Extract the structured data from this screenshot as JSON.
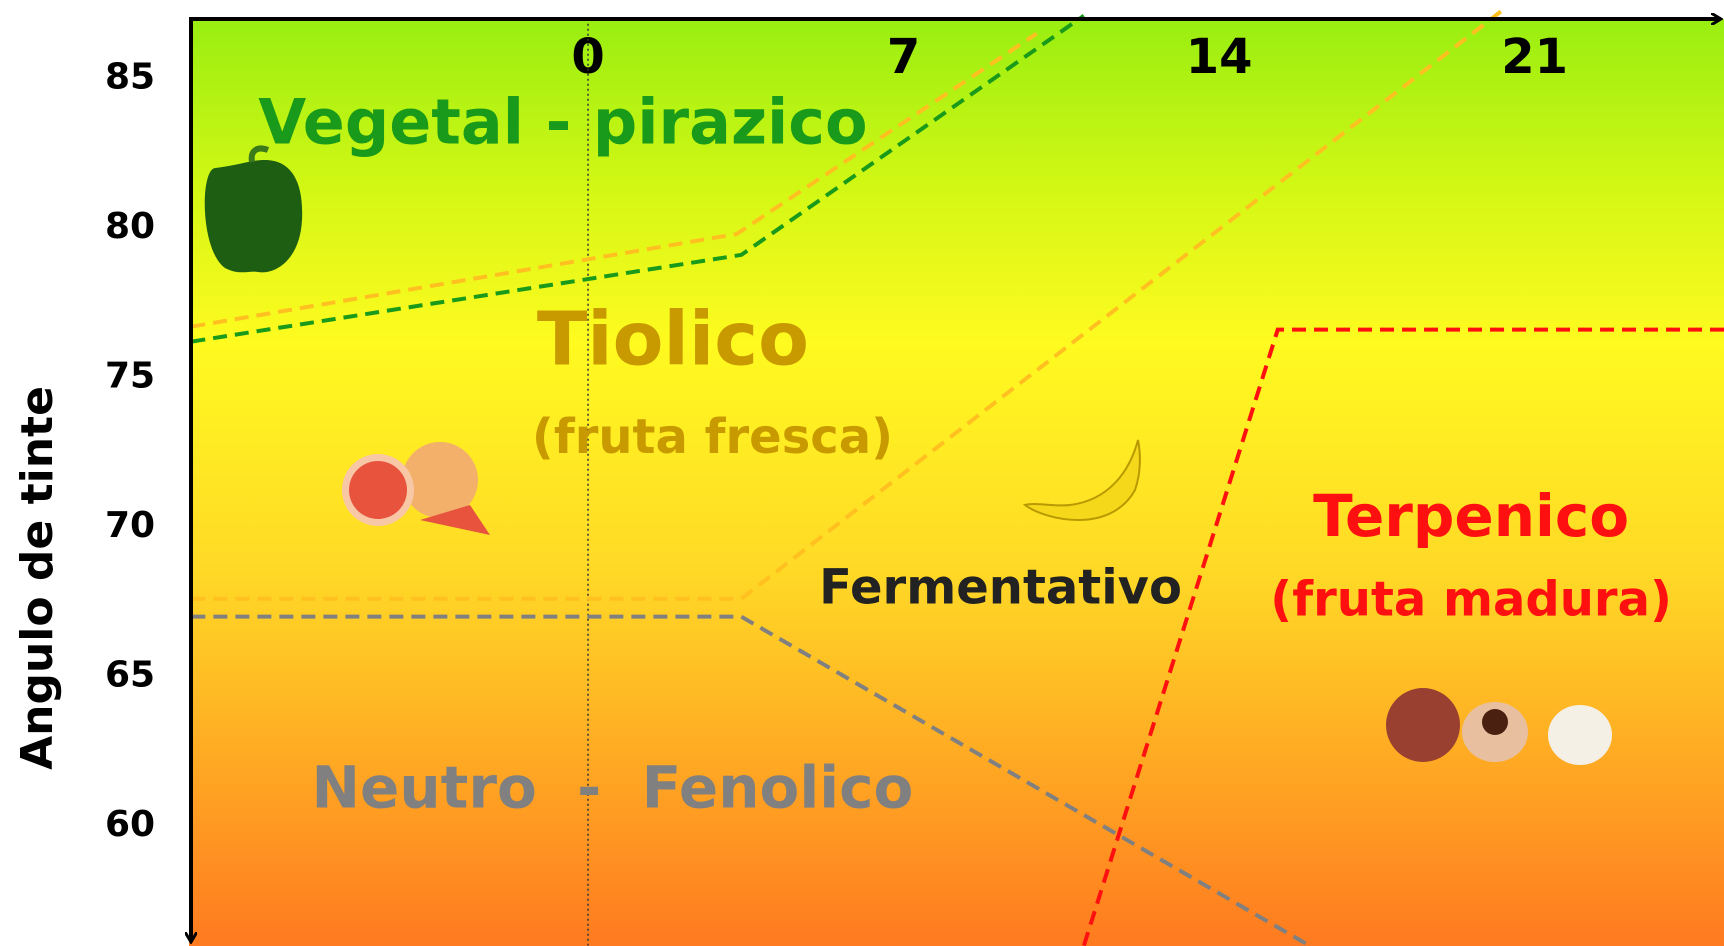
{
  "chart_data": {
    "type": "zones",
    "y_label": "Angulo de tinte",
    "xlim": [
      -8.85,
      25.2
    ],
    "ylim": [
      56,
      87
    ],
    "xticks": [
      0,
      7,
      14,
      21
    ],
    "yticks": [
      60,
      65,
      70,
      75,
      80,
      85
    ],
    "reference_x": 0,
    "series": [
      {
        "color": "#1a9a1a",
        "x": [
          -8.8,
          3.4,
          11.0
        ],
        "values": [
          76.2,
          79.1,
          87.1
        ]
      },
      {
        "color": "#ffc020",
        "x": [
          -8.8,
          3.3,
          9.95
        ],
        "values": [
          76.7,
          79.8,
          86.5
        ]
      },
      {
        "color": "#ffc020",
        "x": [
          -8.8,
          3.4,
          20.3
        ],
        "values": [
          67.6,
          67.6,
          87.3
        ]
      },
      {
        "color": "#808080",
        "x": [
          -8.8,
          3.4,
          16.0
        ],
        "values": [
          67.0,
          67.0,
          56.0
        ]
      },
      {
        "color": "#ff1010",
        "x": [
          11.0,
          15.3,
          25.2
        ],
        "values": [
          56.0,
          76.6,
          76.6
        ]
      }
    ],
    "zones": [
      {
        "text": "Vegetal - pirazico",
        "color": "#1a9a1a"
      },
      {
        "text": "Tiolico",
        "color": "#c89a00"
      },
      {
        "text": "(fruta fresca)",
        "color": "#c89a00"
      },
      {
        "text": "Fermentativo",
        "color": "#222222"
      },
      {
        "text": "Terpenico",
        "color": "#ff1010"
      },
      {
        "text": "(fruta madura)",
        "color": "#ff1010"
      },
      {
        "text": "Neutro  -  Fenolico",
        "color": "#808080"
      }
    ]
  }
}
